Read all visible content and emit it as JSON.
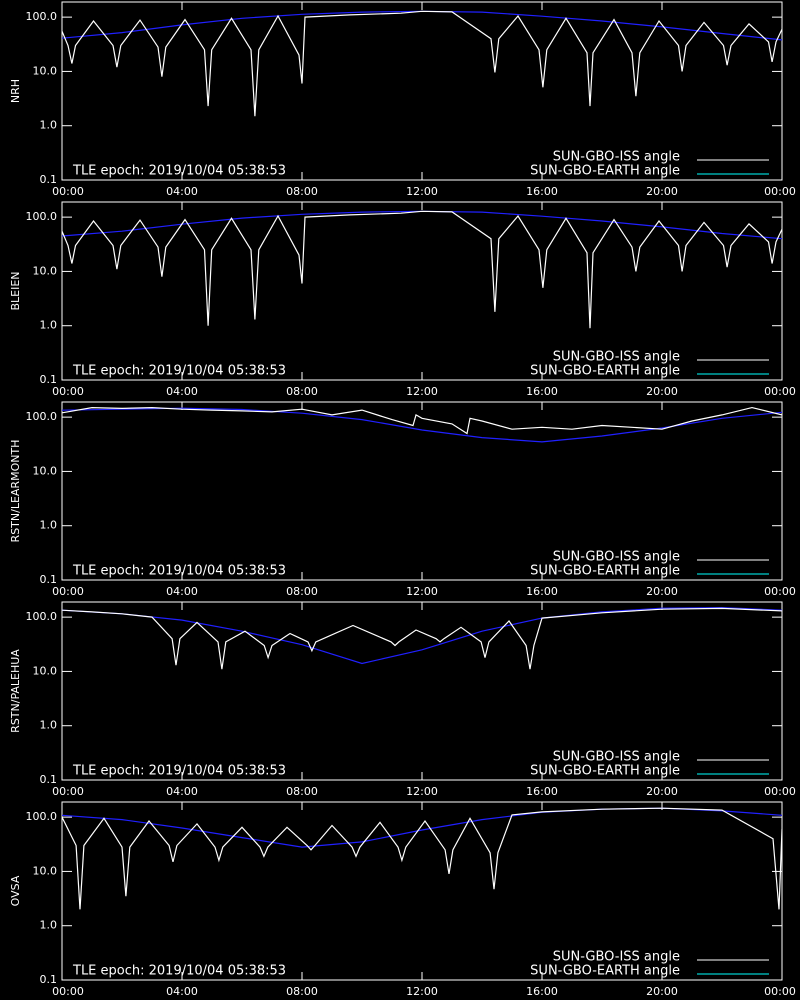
{
  "chart_data": [
    {
      "type": "line",
      "ylabel": "NRH",
      "annotation": "TLE epoch: 2019/10/04 05:38:53",
      "xlim": [
        0,
        24
      ],
      "xticks": [
        {
          "value": 0,
          "label": "00:00"
        },
        {
          "value": 4,
          "label": "04:00"
        },
        {
          "value": 8,
          "label": "08:00"
        },
        {
          "value": 12,
          "label": "12:00"
        },
        {
          "value": 16,
          "label": "16:00"
        },
        {
          "value": 20,
          "label": "20:00"
        },
        {
          "value": 24,
          "label": "00:00"
        }
      ],
      "ylim": [
        0.1,
        190
      ],
      "log_scale": true,
      "yticks": [
        0.1,
        {
          "value": 1,
          "label": "1.0"
        },
        {
          "value": 10,
          "label": "10.0"
        },
        {
          "value": 100,
          "label": "100.0"
        }
      ],
      "series": [
        {
          "name": "SUN-GBO-ISS angle",
          "color": "#ffffff",
          "x": [
            0,
            0.2,
            0.33,
            0.45,
            1.05,
            1.7,
            1.83,
            1.96,
            2.6,
            3.2,
            3.33,
            3.46,
            4.1,
            4.75,
            4.87,
            4.99,
            5.65,
            6.3,
            6.43,
            6.56,
            7.2,
            7.9,
            8.0,
            8.1,
            9.6,
            11.3,
            12,
            13,
            14.3,
            14.43,
            14.56,
            15.2,
            15.9,
            16.03,
            16.16,
            16.8,
            17.5,
            17.6,
            17.7,
            18.4,
            19.0,
            19.13,
            19.26,
            19.9,
            20.55,
            20.67,
            20.8,
            21.4,
            22.05,
            22.17,
            22.3,
            22.9,
            23.55,
            23.67,
            23.8,
            24
          ],
          "values": [
            55,
            30,
            14,
            30,
            85,
            30,
            12,
            30,
            88,
            28,
            8,
            28,
            90,
            25,
            2.3,
            25,
            95,
            25,
            1.5,
            25,
            105,
            20,
            6,
            100,
            110,
            118,
            128,
            125,
            40,
            9.6,
            40,
            105,
            25,
            5.1,
            25,
            95,
            22,
            2.3,
            22,
            90,
            22,
            3.5,
            22,
            85,
            30,
            10,
            30,
            80,
            30,
            13,
            30,
            75,
            35,
            15,
            35,
            60
          ]
        },
        {
          "name": "SUN-GBO-EARTH angle",
          "color": "#00ffff",
          "line_color": "#2020ff",
          "x": [
            0,
            2,
            4,
            6,
            8,
            10,
            12,
            14,
            16,
            18,
            20,
            22,
            24
          ],
          "values": [
            41,
            52,
            72,
            95,
            113,
            124,
            128,
            124,
            104,
            85,
            66,
            50,
            38
          ]
        }
      ]
    },
    {
      "type": "line",
      "ylabel": "BLEIEN",
      "annotation": "TLE epoch: 2019/10/04 05:38:53",
      "xlim": [
        0,
        24
      ],
      "xticks": [
        {
          "value": 0,
          "label": "00:00"
        },
        {
          "value": 4,
          "label": "04:00"
        },
        {
          "value": 8,
          "label": "08:00"
        },
        {
          "value": 12,
          "label": "12:00"
        },
        {
          "value": 16,
          "label": "16:00"
        },
        {
          "value": 20,
          "label": "20:00"
        },
        {
          "value": 24,
          "label": "00:00"
        }
      ],
      "ylim": [
        0.1,
        190
      ],
      "log_scale": true,
      "yticks": [
        0.1,
        {
          "value": 1,
          "label": "1.0"
        },
        {
          "value": 10,
          "label": "10.0"
        },
        {
          "value": 100,
          "label": "100.0"
        }
      ],
      "series": [
        {
          "name": "SUN-GBO-ISS angle",
          "color": "#ffffff",
          "x": [
            0,
            0.2,
            0.33,
            0.45,
            1.05,
            1.7,
            1.83,
            1.96,
            2.6,
            3.2,
            3.33,
            3.46,
            4.1,
            4.75,
            4.87,
            4.99,
            5.65,
            6.3,
            6.43,
            6.56,
            7.2,
            7.9,
            8.0,
            8.1,
            9.6,
            11.3,
            12,
            13,
            14.3,
            14.43,
            14.56,
            15.2,
            15.9,
            16.03,
            16.16,
            16.8,
            17.5,
            17.6,
            17.7,
            18.4,
            19.0,
            19.13,
            19.26,
            19.9,
            20.55,
            20.67,
            20.8,
            21.4,
            22.05,
            22.17,
            22.3,
            22.9,
            23.55,
            23.67,
            23.8,
            24
          ],
          "values": [
            55,
            30,
            14,
            30,
            85,
            30,
            11,
            30,
            88,
            28,
            8,
            28,
            90,
            25,
            1.0,
            25,
            95,
            25,
            1.3,
            25,
            105,
            20,
            6,
            100,
            110,
            118,
            128,
            125,
            40,
            1.8,
            40,
            105,
            25,
            5,
            25,
            95,
            22,
            0.9,
            22,
            90,
            28,
            10,
            28,
            85,
            30,
            10,
            30,
            80,
            30,
            12,
            30,
            75,
            35,
            14,
            35,
            60
          ]
        },
        {
          "name": "SUN-GBO-EARTH angle",
          "color": "#00ffff",
          "line_color": "#2020ff",
          "x": [
            0,
            2,
            4,
            6,
            8,
            10,
            12,
            14,
            16,
            18,
            20,
            22,
            24
          ],
          "values": [
            45,
            55,
            74,
            96,
            113,
            124,
            128,
            124,
            104,
            85,
            66,
            50,
            40
          ]
        }
      ]
    },
    {
      "type": "line",
      "ylabel": "RSTN/LEARMONTH",
      "annotation": "TLE epoch: 2019/10/04 05:38:53",
      "xlim": [
        0,
        24
      ],
      "xticks": [
        {
          "value": 0,
          "label": "00:00"
        },
        {
          "value": 4,
          "label": "04:00"
        },
        {
          "value": 8,
          "label": "08:00"
        },
        {
          "value": 12,
          "label": "12:00"
        },
        {
          "value": 16,
          "label": "16:00"
        },
        {
          "value": 20,
          "label": "20:00"
        },
        {
          "value": 24,
          "label": "00:00"
        }
      ],
      "ylim": [
        0.1,
        190
      ],
      "log_scale": true,
      "yticks": [
        0.1,
        {
          "value": 1,
          "label": "1.0"
        },
        {
          "value": 10,
          "label": "10.0"
        },
        {
          "value": 100,
          "label": "100.0"
        }
      ],
      "series": [
        {
          "name": "SUN-GBO-ISS angle",
          "color": "#ffffff",
          "x": [
            0,
            1,
            2,
            3,
            4,
            5,
            6,
            7,
            8,
            9,
            10,
            11,
            11.7,
            11.8,
            12,
            13,
            13.5,
            13.6,
            14,
            15,
            16,
            17,
            18,
            19,
            20,
            21,
            22,
            23,
            24
          ],
          "values": [
            120,
            150,
            145,
            150,
            140,
            135,
            130,
            125,
            140,
            110,
            135,
            90,
            70,
            110,
            95,
            75,
            50,
            95,
            85,
            60,
            65,
            60,
            70,
            65,
            60,
            85,
            110,
            150,
            110
          ]
        },
        {
          "name": "SUN-GBO-EARTH angle",
          "color": "#00ffff",
          "line_color": "#2020ff",
          "x": [
            0,
            2,
            4,
            6,
            8,
            10,
            12,
            14,
            16,
            18,
            20,
            22,
            24
          ],
          "values": [
            134,
            140,
            146,
            138,
            118,
            90,
            58,
            42,
            35,
            45,
            63,
            95,
            123
          ]
        }
      ]
    },
    {
      "type": "line",
      "ylabel": "RSTN/PALEHUA",
      "annotation": "TLE epoch: 2019/10/04 05:38:53",
      "xlim": [
        0,
        24
      ],
      "xticks": [
        {
          "value": 0,
          "label": "00:00"
        },
        {
          "value": 4,
          "label": "04:00"
        },
        {
          "value": 8,
          "label": "08:00"
        },
        {
          "value": 12,
          "label": "12:00"
        },
        {
          "value": 16,
          "label": "16:00"
        },
        {
          "value": 20,
          "label": "20:00"
        },
        {
          "value": 24,
          "label": "00:00"
        }
      ],
      "ylim": [
        0.1,
        190
      ],
      "log_scale": true,
      "yticks": [
        0.1,
        {
          "value": 1,
          "label": "1.0"
        },
        {
          "value": 10,
          "label": "10.0"
        },
        {
          "value": 100,
          "label": "100.0"
        }
      ],
      "series": [
        {
          "name": "SUN-GBO-ISS angle",
          "color": "#ffffff",
          "x": [
            0,
            1,
            2,
            3,
            3.67,
            3.8,
            3.93,
            4.5,
            5.2,
            5.33,
            5.46,
            6.1,
            6.74,
            6.87,
            7.0,
            7.6,
            8.2,
            8.33,
            8.46,
            9.7,
            10.97,
            11.1,
            11.23,
            11.8,
            12.47,
            12.6,
            12.73,
            13.3,
            13.97,
            14.1,
            14.23,
            14.9,
            15.47,
            15.6,
            15.73,
            16,
            18,
            20,
            22,
            24
          ],
          "values": [
            134,
            125,
            115,
            100,
            40,
            13,
            40,
            80,
            35,
            11,
            35,
            55,
            30,
            18,
            30,
            50,
            35,
            24,
            35,
            70,
            35,
            30,
            35,
            58,
            40,
            35,
            40,
            65,
            35,
            18,
            35,
            85,
            30,
            11,
            30,
            96,
            120,
            140,
            145,
            130
          ]
        },
        {
          "name": "SUN-GBO-EARTH angle",
          "color": "#00ffff",
          "line_color": "#2020ff",
          "x": [
            0,
            2,
            4,
            6,
            8,
            10,
            12,
            14,
            16,
            18,
            20,
            22,
            24
          ],
          "values": [
            134,
            115,
            88,
            55,
            31,
            14,
            25,
            55,
            96,
            125,
            146,
            150,
            134
          ]
        }
      ]
    },
    {
      "type": "line",
      "ylabel": "OVSA",
      "annotation": "TLE epoch: 2019/10/04 05:38:53",
      "xlim": [
        0,
        24
      ],
      "xticks": [
        {
          "value": 0,
          "label": "00:00"
        },
        {
          "value": 4,
          "label": "04:00"
        },
        {
          "value": 8,
          "label": "08:00"
        },
        {
          "value": 12,
          "label": "12:00"
        },
        {
          "value": 16,
          "label": "16:00"
        },
        {
          "value": 20,
          "label": "20:00"
        },
        {
          "value": 24,
          "label": "00:00"
        }
      ],
      "ylim": [
        0.1,
        190
      ],
      "log_scale": true,
      "yticks": [
        0.1,
        {
          "value": 1,
          "label": "1.0"
        },
        {
          "value": 10,
          "label": "10.0"
        },
        {
          "value": 100,
          "label": "100.0"
        }
      ],
      "series": [
        {
          "name": "SUN-GBO-ISS angle",
          "color": "#ffffff",
          "x": [
            0,
            0.47,
            0.6,
            0.73,
            1.4,
            2.0,
            2.13,
            2.26,
            2.9,
            3.57,
            3.7,
            3.83,
            4.5,
            5.1,
            5.23,
            5.36,
            6.0,
            6.6,
            6.73,
            6.86,
            7.5,
            8.17,
            8.3,
            8.43,
            9.0,
            9.67,
            9.8,
            9.93,
            10.6,
            11.2,
            11.33,
            11.46,
            12.1,
            12.77,
            12.9,
            13.03,
            13.6,
            14.27,
            14.4,
            14.53,
            15,
            16,
            18,
            20,
            22,
            23.7,
            23.9,
            24
          ],
          "values": [
            100,
            30,
            2.0,
            30,
            95,
            28,
            3.5,
            28,
            85,
            30,
            15,
            30,
            75,
            28,
            16,
            28,
            65,
            28,
            19,
            28,
            65,
            30,
            25,
            30,
            70,
            28,
            19,
            28,
            80,
            28,
            16,
            28,
            85,
            25,
            9,
            25,
            95,
            22,
            4.7,
            22,
            110,
            125,
            140,
            146,
            135,
            40,
            2.0,
            60
          ]
        },
        {
          "name": "SUN-GBO-EARTH angle",
          "color": "#00ffff",
          "line_color": "#2020ff",
          "x": [
            0,
            2,
            4,
            6,
            8,
            10,
            12,
            14,
            16,
            18,
            20,
            22,
            24
          ],
          "values": [
            108,
            90,
            63,
            42,
            28,
            35,
            58,
            90,
            123,
            140,
            146,
            130,
            108
          ]
        }
      ]
    }
  ]
}
